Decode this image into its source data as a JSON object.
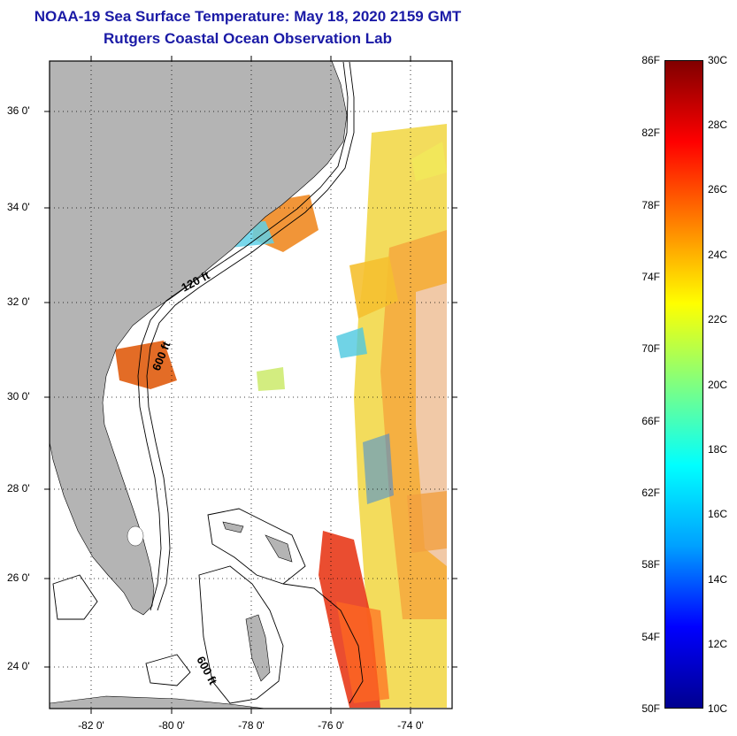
{
  "header": {
    "title": "NOAA-19 Sea Surface Temperature:  May 18, 2020 2159 GMT",
    "subtitle": "Rutgers Coastal Ocean Observation Lab"
  },
  "map": {
    "lat_ticks": [
      "36 0'",
      "34 0'",
      "32 0'",
      "30 0'",
      "28 0'",
      "26 0'",
      "24 0'"
    ],
    "lon_ticks": [
      "-82 0'",
      "-80 0'",
      "-78 0'",
      "-76 0'",
      "-74 0'"
    ],
    "contour_labels": [
      "120 ft",
      "600 ft",
      "600 ft"
    ],
    "land_color": "#b4b4b4",
    "ocean_color": "#ffffff"
  },
  "colorbar": {
    "fahrenheit_labels": [
      "86F",
      "82F",
      "78F",
      "74F",
      "70F",
      "66F",
      "62F",
      "58F",
      "54F",
      "50F"
    ],
    "celsius_labels": [
      "30C",
      "28C",
      "26C",
      "24C",
      "22C",
      "20C",
      "18C",
      "16C",
      "14C",
      "12C",
      "10C"
    ],
    "colors": [
      "#00008f",
      "#0000ff",
      "#00a0ff",
      "#00ffff",
      "#80ff80",
      "#ffff00",
      "#ff8000",
      "#ff0000",
      "#800000"
    ]
  }
}
